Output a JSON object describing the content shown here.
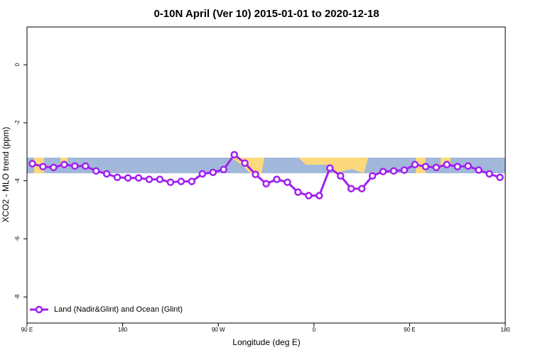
{
  "chart_data": {
    "type": "line",
    "title": "0-10N April (Ver 10)   2015-01-01 to 2020-12-18",
    "x_label": "Longitude (deg E)",
    "y_label": "XCO2 - MLO trend (ppm)",
    "x": [
      95,
      105,
      115,
      125,
      135,
      145,
      155,
      165,
      175,
      185,
      195,
      205,
      215,
      225,
      235,
      245,
      255,
      265,
      275,
      285,
      295,
      305,
      315,
      325,
      335,
      345,
      355,
      365,
      375,
      385,
      395,
      405,
      415,
      425,
      435,
      445,
      455,
      465,
      475,
      485,
      495,
      505,
      515,
      525,
      535
    ],
    "series": [
      {
        "name": "Land (Nadir&Glint) and Ocean (Glint)",
        "color": "#a020f0",
        "values": [
          -3.41,
          -3.51,
          -3.54,
          -3.44,
          -3.49,
          -3.49,
          -3.66,
          -3.76,
          -3.88,
          -3.9,
          -3.9,
          -3.95,
          -3.95,
          -4.05,
          -4.02,
          -4.02,
          -3.76,
          -3.71,
          -3.61,
          -3.1,
          -3.39,
          -3.78,
          -4.1,
          -3.95,
          -4.05,
          -4.39,
          -4.51,
          -4.51,
          -3.56,
          -3.83,
          -4.27,
          -4.27,
          -3.83,
          -3.68,
          -3.66,
          -3.63,
          -3.44,
          -3.51,
          -3.54,
          -3.44,
          -3.51,
          -3.49,
          -3.63,
          -3.76,
          -3.88
        ]
      }
    ],
    "xlim": [
      90,
      540
    ],
    "xticks": [
      {
        "value": 90,
        "label": "90 E"
      },
      180,
      {
        "value": 270,
        "label": "90 W"
      },
      {
        "value": 360,
        "label": "0"
      },
      {
        "value": 450,
        "label": "90 E"
      },
      {
        "value": 540,
        "label": "180"
      }
    ],
    "ylim": [
      -8.9,
      1.3
    ],
    "yticks": [
      0,
      -2,
      -4,
      -6,
      -8
    ],
    "legend": "bottomleft"
  }
}
